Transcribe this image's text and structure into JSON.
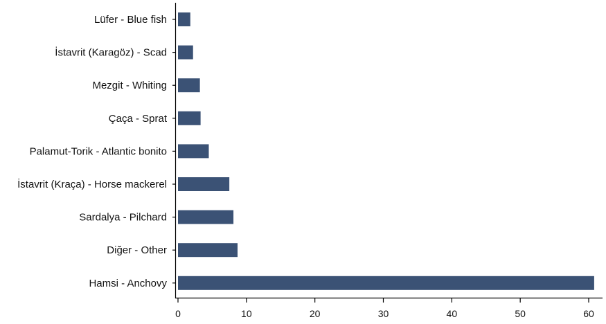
{
  "chart_data": {
    "type": "bar",
    "orientation": "horizontal",
    "title": "",
    "xlabel": "",
    "ylabel": "",
    "categories": [
      "Lüfer - Blue fish",
      "İstavrit (Karagöz) - Scad",
      "Mezgit - Whiting",
      "Çaça - Sprat",
      "Palamut-Torik - Atlantic bonito",
      "İstavrit (Kraça) - Horse mackerel",
      "Sardalya - Pilchard",
      "Diğer - Other",
      "Hamsi - Anchovy"
    ],
    "values": [
      1.8,
      2.2,
      3.2,
      3.3,
      4.5,
      7.5,
      8.1,
      8.7,
      60.8
    ],
    "xlim": [
      0,
      62
    ],
    "xticks": [
      0,
      10,
      20,
      30,
      40,
      50,
      60
    ],
    "xtick_labels": [
      "0",
      "10",
      "20",
      "30",
      "40",
      "50",
      "60"
    ],
    "bar_color": "#3b5275",
    "grid": false,
    "legend": "none"
  }
}
